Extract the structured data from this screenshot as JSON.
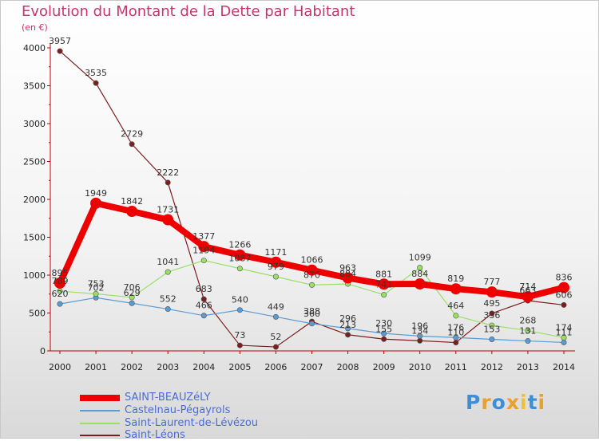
{
  "chart_data": {
    "type": "line",
    "title": "Evolution du Montant de la Dette par Habitant",
    "ylabel": "(en €)",
    "xlabel": "",
    "x": [
      "2000",
      "2001",
      "2002",
      "2003",
      "2004",
      "2005",
      "2006",
      "2007",
      "2008",
      "2009",
      "2010",
      "2011",
      "2012",
      "2013",
      "2014"
    ],
    "y_ticks": [
      "0",
      "500",
      "1000",
      "1500",
      "2000",
      "2500",
      "3000",
      "3500",
      "4000"
    ],
    "ylim": [
      0,
      4000
    ],
    "grid": false,
    "legend_position": "bottom-left",
    "series": [
      {
        "name": "SAINT-BEAUZéLY",
        "color": "#ee0000",
        "values": [
          895,
          1949,
          1842,
          1731,
          1377,
          1266,
          1171,
          1066,
          963,
          881,
          884,
          819,
          777,
          714,
          836
        ],
        "labels": [
          "895",
          "1949",
          "1842",
          "1731",
          "1377",
          "1266",
          "1171",
          "1066",
          "963",
          "881",
          "884",
          "819",
          "777",
          "714",
          "836"
        ]
      },
      {
        "name": "Castelnau-Pégayrols",
        "color": "#5a9bd4",
        "values": [
          620,
          702,
          629,
          552,
          466,
          540,
          449,
          360,
          296,
          230,
          196,
          176,
          153,
          131,
          111
        ],
        "labels": [
          "620",
          "702",
          "629",
          "552",
          "466",
          "540",
          "449",
          "360",
          "296",
          "230",
          "196",
          "176",
          "153",
          "131",
          "111"
        ]
      },
      {
        "name": "Saint-Laurent-de-Lévézou",
        "color": "#99e066",
        "values": [
          789,
          753,
          706,
          1041,
          1194,
          1087,
          979,
          870,
          884,
          741,
          1099,
          464,
          336,
          268,
          174
        ],
        "labels": [
          "789",
          "753",
          "706",
          "1041",
          "1194",
          "1087",
          "979",
          "870",
          "884",
          "741",
          "1099",
          "464",
          "336",
          "268",
          "174"
        ]
      },
      {
        "name": "Saint-Léons",
        "color": "#7a1e1e",
        "values": [
          3957,
          3535,
          2729,
          2222,
          683,
          73,
          52,
          388,
          213,
          155,
          134,
          110,
          495,
          663,
          606
        ],
        "labels": [
          "3957",
          "3535",
          "2729",
          "2222",
          "683",
          "73",
          "52",
          "388",
          "213",
          "155",
          "134",
          "110",
          "495",
          "663",
          "606"
        ]
      }
    ]
  },
  "logo": {
    "letters": [
      "P",
      "r",
      "o",
      "x",
      "i",
      "t",
      "i"
    ],
    "colors": [
      "#3a8fd8",
      "#e8a030",
      "#3a8fd8",
      "#e8a030",
      "#f0c030",
      "#3a8fd8",
      "#e8a030"
    ]
  }
}
